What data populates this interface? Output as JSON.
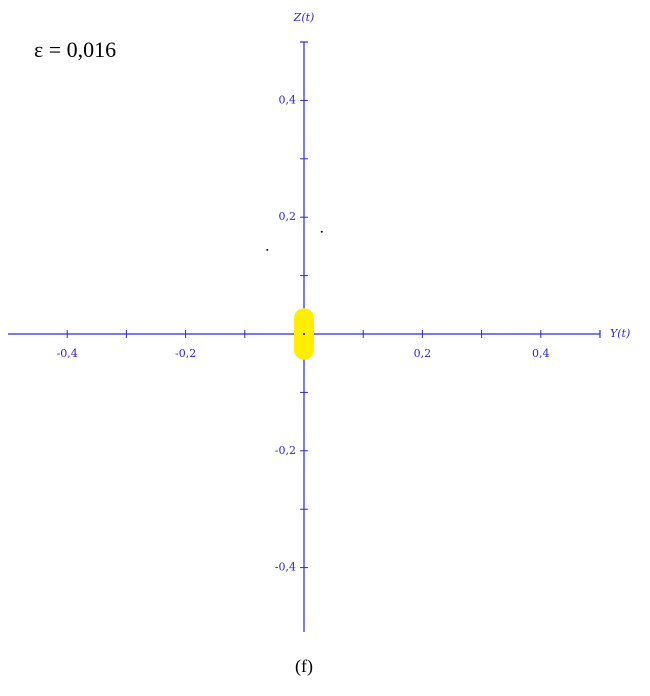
{
  "chart_data": {
    "type": "scatter",
    "annotation": "ε = 0,016",
    "x_label": "Y(t)",
    "y_label": "Z(t)",
    "caption": "(f)",
    "xlim": [
      -0.5,
      0.5
    ],
    "ylim": [
      -0.5,
      0.5
    ],
    "xticks": [
      {
        "value": -0.4,
        "label": "-0,4"
      },
      {
        "value": -0.2,
        "label": "-0,2"
      },
      {
        "value": 0.2,
        "label": "0,2"
      },
      {
        "value": 0.4,
        "label": "0,4"
      }
    ],
    "yticks": [
      {
        "value": -0.4,
        "label": "-0,4"
      },
      {
        "value": -0.2,
        "label": "-0,2"
      },
      {
        "value": 0.2,
        "label": "0,2"
      },
      {
        "value": 0.4,
        "label": "0,4"
      }
    ],
    "xminorticks": [
      -0.3,
      -0.1,
      0.1,
      0.3
    ],
    "yminorticks": [
      -0.3,
      -0.1,
      0.1,
      0.3
    ],
    "axis_color": "#2a2ad8",
    "series": [
      {
        "color": "#ffee00",
        "style": "band",
        "x": [
          0,
          0
        ],
        "values": [
          0.027,
          -0.027
        ]
      },
      {
        "color": "#000000",
        "style": "dots",
        "x": [
          0,
          0.03,
          -0.062
        ],
        "values": [
          0,
          0.175,
          0.144
        ]
      }
    ]
  }
}
